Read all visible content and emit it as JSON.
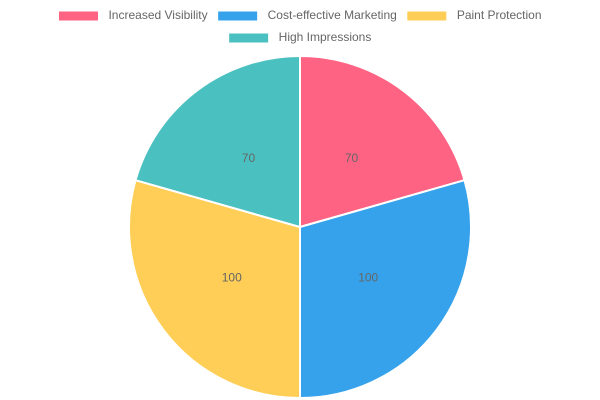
{
  "chart_data": {
    "type": "pie",
    "categories": [
      "Increased Visibility",
      "Cost-effective Marketing",
      "Paint Protection",
      "High Impressions"
    ],
    "values": [
      70,
      100,
      100,
      70
    ],
    "colors": [
      "#ff6384",
      "#36a2eb",
      "#ffce56",
      "#4bc0c0"
    ],
    "legend": "top"
  }
}
